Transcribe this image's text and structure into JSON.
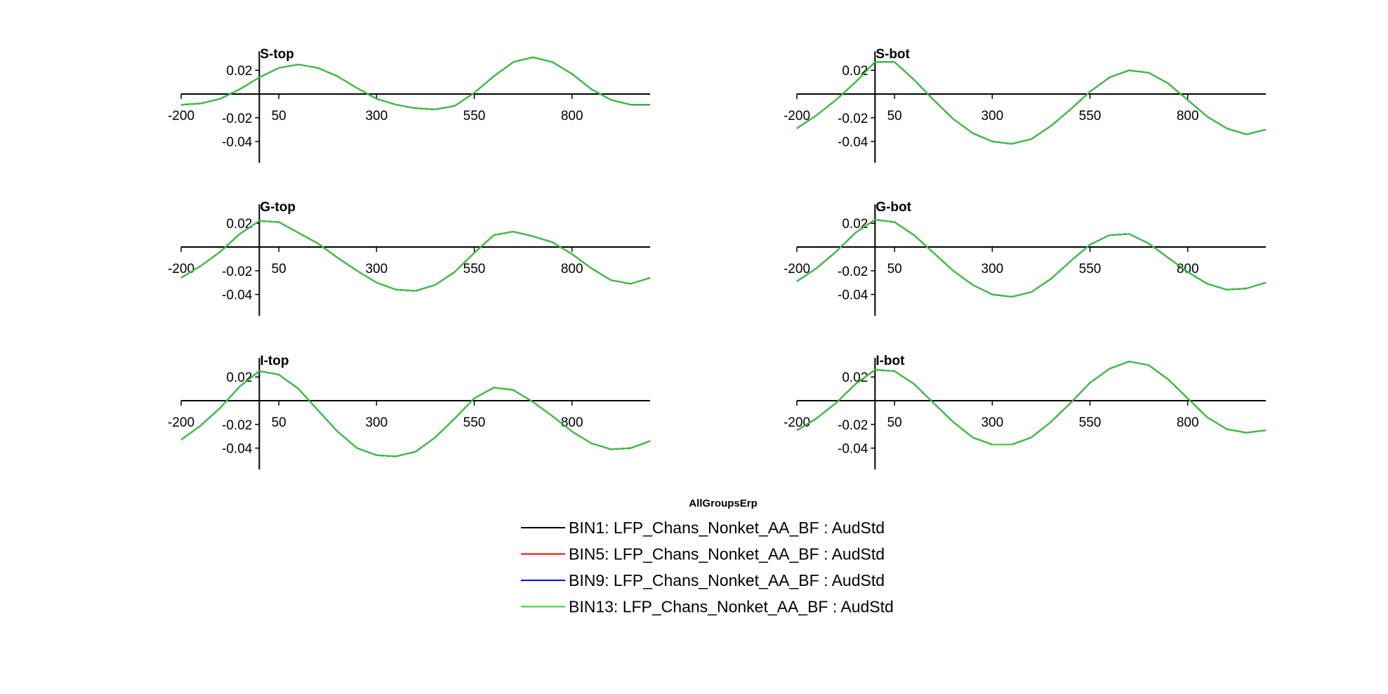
{
  "figure": {
    "legend_title": "AllGroupsErp"
  },
  "legend": [
    {
      "label": "BIN1: LFP_Chans_Nonket_AA_BF : AudStd",
      "color": "#000000"
    },
    {
      "label": "BIN5: LFP_Chans_Nonket_AA_BF : AudStd",
      "color": "#ff0000"
    },
    {
      "label": "BIN9: LFP_Chans_Nonket_AA_BF : AudStd",
      "color": "#0000ff"
    },
    {
      "label": "BIN13: LFP_Chans_Nonket_AA_BF : AudStd",
      "color": "#33cc33"
    }
  ],
  "chart_data": [
    {
      "type": "line",
      "title": "S-top",
      "xlim": [
        -200,
        1000
      ],
      "ylim": [
        -0.058,
        0.036
      ],
      "xticks": [
        -200,
        50,
        300,
        550,
        800
      ],
      "xtick_labels": [
        "-200",
        "50",
        "300",
        "550",
        "800"
      ],
      "yticks": [
        0.02,
        -0.02,
        -0.04
      ],
      "ytick_labels": [
        "0.02",
        "-0.02",
        "-0.04"
      ],
      "series_colors": [
        "#000000",
        "#ff0000",
        "#0000ff",
        "#33cc33"
      ],
      "x": [
        -200,
        -150,
        -100,
        -50,
        0,
        50,
        100,
        150,
        200,
        250,
        300,
        350,
        400,
        450,
        500,
        550,
        600,
        650,
        700,
        750,
        800,
        850,
        900,
        950,
        1000
      ],
      "y": [
        -0.009,
        -0.008,
        -0.004,
        0.004,
        0.014,
        0.022,
        0.025,
        0.022,
        0.015,
        0.005,
        -0.004,
        -0.009,
        -0.012,
        -0.013,
        -0.01,
        0.001,
        0.015,
        0.027,
        0.031,
        0.027,
        0.017,
        0.004,
        -0.005,
        -0.009,
        -0.009
      ]
    },
    {
      "type": "line",
      "title": "S-bot",
      "xlim": [
        -200,
        1000
      ],
      "ylim": [
        -0.058,
        0.036
      ],
      "xticks": [
        -200,
        50,
        300,
        550,
        800
      ],
      "xtick_labels": [
        "-200",
        "50",
        "300",
        "550",
        "800"
      ],
      "yticks": [
        0.02,
        -0.02,
        -0.04
      ],
      "ytick_labels": [
        "0.02",
        "-0.02",
        "-0.04"
      ],
      "series_colors": [
        "#000000",
        "#ff0000",
        "#0000ff",
        "#33cc33"
      ],
      "x": [
        -200,
        -150,
        -100,
        -50,
        0,
        50,
        100,
        150,
        200,
        250,
        300,
        350,
        400,
        450,
        500,
        550,
        600,
        650,
        700,
        750,
        800,
        850,
        900,
        950,
        1000
      ],
      "y": [
        -0.029,
        -0.018,
        -0.005,
        0.01,
        0.027,
        0.027,
        0.012,
        -0.005,
        -0.021,
        -0.033,
        -0.04,
        -0.042,
        -0.038,
        -0.027,
        -0.013,
        0.002,
        0.014,
        0.02,
        0.018,
        0.009,
        -0.005,
        -0.019,
        -0.029,
        -0.034,
        -0.03
      ]
    },
    {
      "type": "line",
      "title": "G-top",
      "xlim": [
        -200,
        1000
      ],
      "ylim": [
        -0.058,
        0.036
      ],
      "xticks": [
        -200,
        50,
        300,
        550,
        800
      ],
      "xtick_labels": [
        "-200",
        "50",
        "300",
        "550",
        "800"
      ],
      "yticks": [
        0.02,
        -0.02,
        -0.04
      ],
      "ytick_labels": [
        "0.02",
        "-0.02",
        "-0.04"
      ],
      "series_colors": [
        "#000000",
        "#ff0000",
        "#0000ff",
        "#33cc33"
      ],
      "x": [
        -200,
        -150,
        -100,
        -50,
        0,
        50,
        100,
        150,
        200,
        250,
        300,
        350,
        400,
        450,
        500,
        550,
        600,
        650,
        700,
        750,
        800,
        850,
        900,
        950,
        1000
      ],
      "y": [
        -0.026,
        -0.016,
        -0.004,
        0.011,
        0.022,
        0.021,
        0.012,
        0.003,
        -0.009,
        -0.02,
        -0.03,
        -0.036,
        -0.037,
        -0.032,
        -0.021,
        -0.005,
        0.01,
        0.013,
        0.009,
        0.004,
        -0.006,
        -0.018,
        -0.028,
        -0.031,
        -0.026
      ]
    },
    {
      "type": "line",
      "title": "G-bot",
      "xlim": [
        -200,
        1000
      ],
      "ylim": [
        -0.058,
        0.036
      ],
      "xticks": [
        -200,
        50,
        300,
        550,
        800
      ],
      "xtick_labels": [
        "-200",
        "50",
        "300",
        "550",
        "800"
      ],
      "yticks": [
        0.02,
        -0.02,
        -0.04
      ],
      "ytick_labels": [
        "0.02",
        "-0.02",
        "-0.04"
      ],
      "series_colors": [
        "#000000",
        "#ff0000",
        "#0000ff",
        "#33cc33"
      ],
      "x": [
        -200,
        -150,
        -100,
        -50,
        0,
        50,
        100,
        150,
        200,
        250,
        300,
        350,
        400,
        450,
        500,
        550,
        600,
        650,
        700,
        750,
        800,
        850,
        900,
        950,
        1000
      ],
      "y": [
        -0.029,
        -0.018,
        -0.004,
        0.012,
        0.023,
        0.021,
        0.01,
        -0.005,
        -0.02,
        -0.032,
        -0.04,
        -0.042,
        -0.038,
        -0.027,
        -0.012,
        0.002,
        0.01,
        0.011,
        0.003,
        -0.009,
        -0.021,
        -0.031,
        -0.036,
        -0.035,
        -0.03
      ]
    },
    {
      "type": "line",
      "title": "I-top",
      "xlim": [
        -200,
        1000
      ],
      "ylim": [
        -0.058,
        0.036
      ],
      "xticks": [
        -200,
        50,
        300,
        550,
        800
      ],
      "xtick_labels": [
        "-200",
        "50",
        "300",
        "550",
        "800"
      ],
      "yticks": [
        0.02,
        -0.02,
        -0.04
      ],
      "ytick_labels": [
        "0.02",
        "-0.02",
        "-0.04"
      ],
      "series_colors": [
        "#000000",
        "#ff0000",
        "#0000ff",
        "#33cc33"
      ],
      "x": [
        -200,
        -150,
        -100,
        -50,
        0,
        50,
        100,
        150,
        200,
        250,
        300,
        350,
        400,
        450,
        500,
        550,
        600,
        650,
        700,
        750,
        800,
        850,
        900,
        950,
        1000
      ],
      "y": [
        -0.033,
        -0.021,
        -0.006,
        0.012,
        0.025,
        0.022,
        0.01,
        -0.008,
        -0.026,
        -0.04,
        -0.046,
        -0.047,
        -0.043,
        -0.031,
        -0.015,
        0.002,
        0.011,
        0.009,
        -0.001,
        -0.013,
        -0.026,
        -0.036,
        -0.041,
        -0.04,
        -0.034
      ]
    },
    {
      "type": "line",
      "title": "I-bot",
      "xlim": [
        -200,
        1000
      ],
      "ylim": [
        -0.058,
        0.036
      ],
      "xticks": [
        -200,
        50,
        300,
        550,
        800
      ],
      "xtick_labels": [
        "-200",
        "50",
        "300",
        "550",
        "800"
      ],
      "yticks": [
        0.02,
        -0.02,
        -0.04
      ],
      "ytick_labels": [
        "0.02",
        "-0.02",
        "-0.04"
      ],
      "series_colors": [
        "#000000",
        "#ff0000",
        "#0000ff",
        "#33cc33"
      ],
      "x": [
        -200,
        -150,
        -100,
        -50,
        0,
        50,
        100,
        150,
        200,
        250,
        300,
        350,
        400,
        450,
        500,
        550,
        600,
        650,
        700,
        750,
        800,
        850,
        900,
        950,
        1000
      ],
      "y": [
        -0.025,
        -0.015,
        -0.002,
        0.014,
        0.026,
        0.025,
        0.014,
        -0.002,
        -0.018,
        -0.031,
        -0.037,
        -0.037,
        -0.031,
        -0.018,
        -0.002,
        0.015,
        0.027,
        0.033,
        0.03,
        0.018,
        0.002,
        -0.014,
        -0.024,
        -0.027,
        -0.025
      ]
    }
  ]
}
